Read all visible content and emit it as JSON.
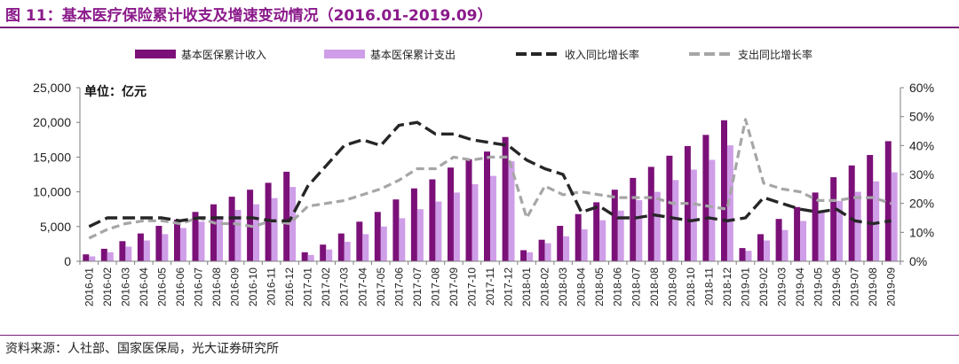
{
  "figure": {
    "title": "图 11：基本医疗保险累计收支及增速变动情况（2016.01-2019.09）",
    "source": "资料来源：人社部、国家医保局，光大证券研究所",
    "unit_label": "单位：亿元"
  },
  "colors": {
    "title": "#8b1a8b",
    "income_bar": "#7b1178",
    "expense_bar": "#cf9ee8",
    "income_line": "#262626",
    "expense_line": "#a6a6a6"
  },
  "chart_data": {
    "type": "bar",
    "categories": [
      "2016-01",
      "2016-02",
      "2016-03",
      "2016-04",
      "2016-05",
      "2016-06",
      "2016-07",
      "2016-08",
      "2016-09",
      "2016-10",
      "2016-11",
      "2016-12",
      "2017-01",
      "2017-02",
      "2017-03",
      "2017-04",
      "2017-05",
      "2017-06",
      "2017-07",
      "2017-08",
      "2017-09",
      "2017-10",
      "2017-11",
      "2017-12",
      "2018-01",
      "2018-02",
      "2018-03",
      "2018-04",
      "2018-05",
      "2018-06",
      "2018-07",
      "2018-08",
      "2018-09",
      "2018-10",
      "2018-11",
      "2018-12",
      "2019-01",
      "2019-02",
      "2019-03",
      "2019-04",
      "2019-05",
      "2019-06",
      "2019-07",
      "2019-08",
      "2019-09"
    ],
    "series": [
      {
        "name": "基本医保累计收入",
        "kind": "bar",
        "axis": "left",
        "values": [
          1000,
          1800,
          2900,
          4000,
          5100,
          6000,
          7100,
          8200,
          9300,
          10300,
          11300,
          12900,
          1300,
          2400,
          4000,
          5700,
          7100,
          8900,
          10500,
          11800,
          13500,
          14700,
          15800,
          17900,
          1600,
          3100,
          5100,
          6800,
          8500,
          10300,
          12000,
          13600,
          15200,
          16600,
          18200,
          20300,
          1900,
          3900,
          6100,
          7800,
          9900,
          12100,
          13800,
          15300,
          17300
        ]
      },
      {
        "name": "基本医保累计支出",
        "kind": "bar",
        "axis": "left",
        "values": [
          700,
          1300,
          2100,
          3000,
          3900,
          4800,
          5700,
          6500,
          7400,
          8200,
          9100,
          10700,
          900,
          1700,
          2800,
          3900,
          5000,
          6200,
          7500,
          8600,
          9900,
          11100,
          12300,
          14400,
          1300,
          2600,
          3600,
          4600,
          5900,
          7300,
          8800,
          10000,
          11700,
          13200,
          14600,
          16700,
          1500,
          3000,
          4500,
          5800,
          7200,
          8700,
          10000,
          11500,
          12800
        ]
      },
      {
        "name": "收入同比增长率",
        "kind": "line",
        "axis": "right",
        "values": [
          0.12,
          0.15,
          0.15,
          0.15,
          0.15,
          0.14,
          0.15,
          0.15,
          0.15,
          0.15,
          0.14,
          0.14,
          0.26,
          0.33,
          0.4,
          0.42,
          0.4,
          0.47,
          0.48,
          0.44,
          0.44,
          0.42,
          0.41,
          0.4,
          0.35,
          0.32,
          0.3,
          0.17,
          0.19,
          0.15,
          0.15,
          0.16,
          0.15,
          0.14,
          0.15,
          0.14,
          0.15,
          0.22,
          0.2,
          0.18,
          0.17,
          0.18,
          0.14,
          0.13,
          0.14
        ]
      },
      {
        "name": "支出同比增长率",
        "kind": "line",
        "axis": "right",
        "values": [
          0.08,
          0.11,
          0.13,
          0.14,
          0.14,
          0.13,
          0.15,
          0.13,
          0.13,
          0.12,
          0.14,
          0.13,
          0.19,
          0.2,
          0.21,
          0.23,
          0.25,
          0.28,
          0.32,
          0.32,
          0.36,
          0.35,
          0.36,
          0.36,
          0.15,
          0.26,
          0.23,
          0.24,
          0.23,
          0.22,
          0.22,
          0.22,
          0.2,
          0.2,
          0.19,
          0.18,
          0.49,
          0.27,
          0.25,
          0.24,
          0.21,
          0.21,
          0.22,
          0.22,
          0.2
        ]
      }
    ],
    "y_left": {
      "min": 0,
      "max": 25000,
      "ticks": [
        "0",
        "5,000",
        "10,000",
        "15,000",
        "20,000",
        "25,000"
      ],
      "tick_values": [
        0,
        5000,
        10000,
        15000,
        20000,
        25000
      ]
    },
    "y_right": {
      "min": 0,
      "max": 0.6,
      "ticks": [
        "0%",
        "10%",
        "20%",
        "30%",
        "40%",
        "50%",
        "60%"
      ],
      "tick_values": [
        0,
        0.1,
        0.2,
        0.3,
        0.4,
        0.5,
        0.6
      ]
    },
    "legend": {
      "placement": "top-center",
      "items": [
        "基本医保累计收入",
        "基本医保累计支出",
        "收入同比增长率",
        "支出同比增长率"
      ]
    },
    "grid": false
  }
}
